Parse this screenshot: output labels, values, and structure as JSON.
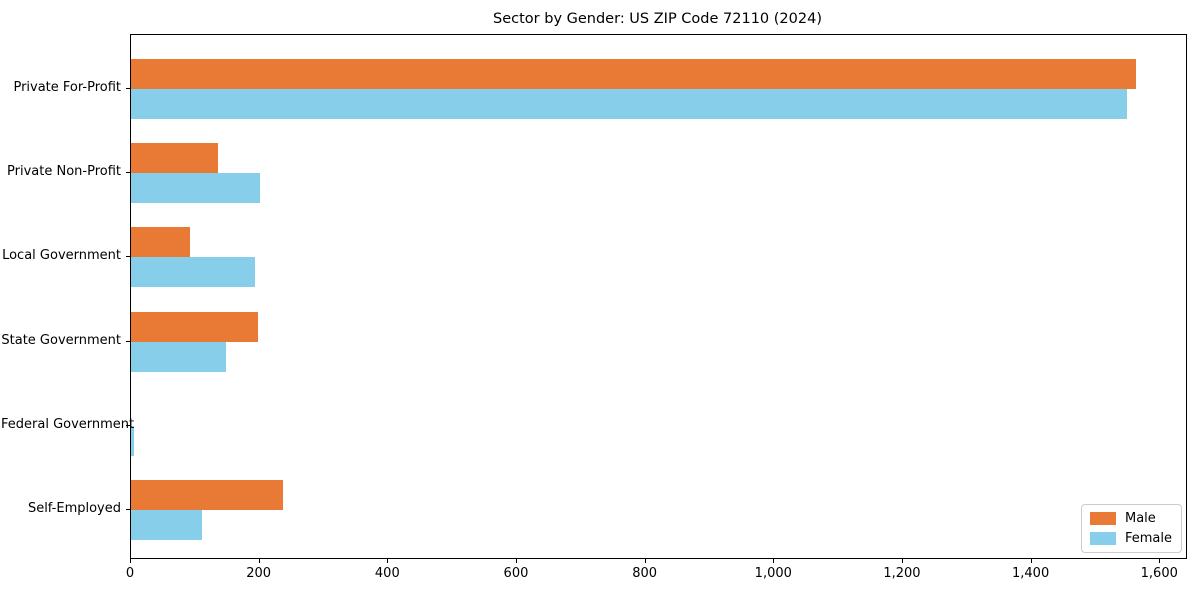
{
  "chart_data": {
    "type": "bar",
    "orientation": "horizontal",
    "title": "Sector by Gender: US ZIP Code 72110 (2024)",
    "categories": [
      "Private For-Profit",
      "Private Non-Profit",
      "Local Government",
      "State Government",
      "Federal Government",
      "Self-Employed"
    ],
    "series": [
      {
        "name": "Male",
        "color": "#e97a36",
        "values": [
          1562,
          135,
          92,
          197,
          0,
          237
        ]
      },
      {
        "name": "Female",
        "color": "#87ceeb",
        "values": [
          1548,
          200,
          193,
          147,
          4,
          110
        ]
      }
    ],
    "xlim": [
      0,
      1640
    ],
    "xticks": [
      0,
      200,
      400,
      600,
      800,
      1000,
      1200,
      1400,
      1600
    ],
    "xtick_labels": [
      "0",
      "200",
      "400",
      "600",
      "800",
      "1,000",
      "1,200",
      "1,400",
      "1,600"
    ],
    "xlabel": "",
    "ylabel": "",
    "grid": false,
    "legend_position": "lower right"
  }
}
